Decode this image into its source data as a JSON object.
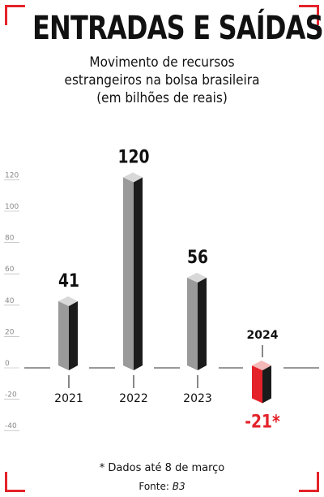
{
  "title": "ENTRADAS E SAÍDAS",
  "subtitle_lines": [
    "Movimento de recursos",
    "estrangeiros na bolsa brasileira",
    "(em bilhões de reais)"
  ],
  "footnote": "* Dados até 8 de março",
  "source_label": "Fonte:",
  "source_name": "B3",
  "colors": {
    "accent": "#e4222a",
    "bar_front": "#9a9a9a",
    "bar_side": "#1b1b1b",
    "bar_top": "#d8d8d8",
    "neg_front": "#e4222a",
    "neg_side": "#1b1b1b",
    "neg_top": "#f5b8b8",
    "tick": "#aaaaaa"
  },
  "chart_data": {
    "type": "bar",
    "categories": [
      "2021",
      "2022",
      "2023",
      "2024"
    ],
    "values": [
      41,
      120,
      56,
      -21
    ],
    "value_labels": [
      "41",
      "120",
      "56",
      "-21*"
    ],
    "ylim": [
      -40,
      120
    ],
    "yticks": [
      120,
      100,
      80,
      60,
      40,
      20,
      0,
      -20,
      -40
    ],
    "highlight_index": 3,
    "grid": false,
    "zero_line": true
  }
}
